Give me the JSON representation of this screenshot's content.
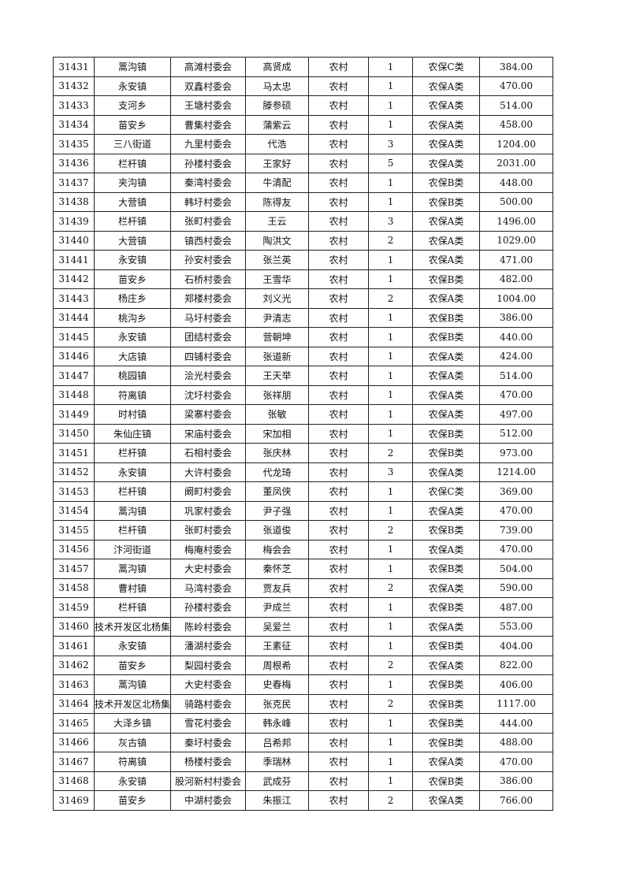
{
  "table": {
    "rows": [
      [
        "31431",
        "蒿沟镇",
        "高滩村委会",
        "高贤成",
        "农村",
        "1",
        "农保C类",
        "384.00"
      ],
      [
        "31432",
        "永安镇",
        "双鑫村委会",
        "马太忠",
        "农村",
        "1",
        "农保A类",
        "470.00"
      ],
      [
        "31433",
        "支河乡",
        "王塘村委会",
        "滕参硕",
        "农村",
        "1",
        "农保A类",
        "514.00"
      ],
      [
        "31434",
        "苗安乡",
        "曹集村委会",
        "蒲紫云",
        "农村",
        "1",
        "农保A类",
        "458.00"
      ],
      [
        "31435",
        "三八街道",
        "九里村委会",
        "代浩",
        "农村",
        "3",
        "农保A类",
        "1204.00"
      ],
      [
        "31436",
        "栏杆镇",
        "孙楼村委会",
        "王家好",
        "农村",
        "5",
        "农保A类",
        "2031.00"
      ],
      [
        "31437",
        "夹沟镇",
        "秦湾村委会",
        "牛清配",
        "农村",
        "1",
        "农保B类",
        "448.00"
      ],
      [
        "31438",
        "大营镇",
        "韩圩村委会",
        "陈得友",
        "农村",
        "1",
        "农保B类",
        "500.00"
      ],
      [
        "31439",
        "栏杆镇",
        "张町村委会",
        "王云",
        "农村",
        "3",
        "农保A类",
        "1496.00"
      ],
      [
        "31440",
        "大营镇",
        "镇西村委会",
        "陶洪文",
        "农村",
        "2",
        "农保A类",
        "1029.00"
      ],
      [
        "31441",
        "永安镇",
        "孙安村委会",
        "张兰英",
        "农村",
        "1",
        "农保A类",
        "471.00"
      ],
      [
        "31442",
        "苗安乡",
        "石桥村委会",
        "王雪华",
        "农村",
        "1",
        "农保B类",
        "482.00"
      ],
      [
        "31443",
        "杨庄乡",
        "郑楼村委会",
        "刘义光",
        "农村",
        "2",
        "农保A类",
        "1004.00"
      ],
      [
        "31444",
        "桃沟乡",
        "马圩村委会",
        "尹清志",
        "农村",
        "1",
        "农保B类",
        "386.00"
      ],
      [
        "31445",
        "永安镇",
        "团结村委会",
        "营朝坤",
        "农村",
        "1",
        "农保B类",
        "440.00"
      ],
      [
        "31446",
        "大店镇",
        "四铺村委会",
        "张道新",
        "农村",
        "1",
        "农保A类",
        "424.00"
      ],
      [
        "31447",
        "桃园镇",
        "浍光村委会",
        "王天举",
        "农村",
        "1",
        "农保A类",
        "514.00"
      ],
      [
        "31448",
        "符离镇",
        "沈圩村委会",
        "张祥朋",
        "农村",
        "1",
        "农保A类",
        "470.00"
      ],
      [
        "31449",
        "时村镇",
        "梁寨村委会",
        "张敏",
        "农村",
        "1",
        "农保A类",
        "497.00"
      ],
      [
        "31450",
        "朱仙庄镇",
        "宋庙村委会",
        "宋加相",
        "农村",
        "1",
        "农保B类",
        "512.00"
      ],
      [
        "31451",
        "栏杆镇",
        "石相村委会",
        "张庆林",
        "农村",
        "2",
        "农保B类",
        "973.00"
      ],
      [
        "31452",
        "永安镇",
        "大许村委会",
        "代龙琦",
        "农村",
        "3",
        "农保A类",
        "1214.00"
      ],
      [
        "31453",
        "栏杆镇",
        "阚町村委会",
        "董凤侠",
        "农村",
        "1",
        "农保C类",
        "369.00"
      ],
      [
        "31454",
        "蒿沟镇",
        "巩家村委会",
        "尹子强",
        "农村",
        "1",
        "农保A类",
        "470.00"
      ],
      [
        "31455",
        "栏杆镇",
        "张町村委会",
        "张道俊",
        "农村",
        "2",
        "农保B类",
        "739.00"
      ],
      [
        "31456",
        "汴河街道",
        "梅庵村委会",
        "梅会会",
        "农村",
        "1",
        "农保A类",
        "470.00"
      ],
      [
        "31457",
        "蒿沟镇",
        "大史村委会",
        "秦怀芝",
        "农村",
        "1",
        "农保B类",
        "504.00"
      ],
      [
        "31458",
        "曹村镇",
        "马湾村委会",
        "贾友兵",
        "农村",
        "2",
        "农保A类",
        "590.00"
      ],
      [
        "31459",
        "栏杆镇",
        "孙楼村委会",
        "尹成兰",
        "农村",
        "1",
        "农保B类",
        "487.00"
      ],
      [
        "31460",
        "技术开发区北杨集",
        "陈岭村委会",
        "吴爱兰",
        "农村",
        "1",
        "农保A类",
        "553.00"
      ],
      [
        "31461",
        "永安镇",
        "潘湖村委会",
        "王素征",
        "农村",
        "1",
        "农保B类",
        "404.00"
      ],
      [
        "31462",
        "苗安乡",
        "梨园村委会",
        "周根希",
        "农村",
        "2",
        "农保A类",
        "822.00"
      ],
      [
        "31463",
        "蒿沟镇",
        "大史村委会",
        "史春梅",
        "农村",
        "1",
        "农保B类",
        "406.00"
      ],
      [
        "31464",
        "技术开发区北杨集",
        "骑路村委会",
        "张克民",
        "农村",
        "2",
        "农保B类",
        "1117.00"
      ],
      [
        "31465",
        "大泽乡镇",
        "雪花村委会",
        "韩永峰",
        "农村",
        "1",
        "农保B类",
        "444.00"
      ],
      [
        "31466",
        "灰古镇",
        "秦圩村委会",
        "吕希邦",
        "农村",
        "1",
        "农保B类",
        "488.00"
      ],
      [
        "31467",
        "符离镇",
        "杨楼村委会",
        "季瑞林",
        "农村",
        "1",
        "农保A类",
        "470.00"
      ],
      [
        "31468",
        "永安镇",
        "股河新村村委会",
        "武成芬",
        "农村",
        "1",
        "农保B类",
        "386.00"
      ],
      [
        "31469",
        "苗安乡",
        "中湖村委会",
        "朱振江",
        "农村",
        "2",
        "农保A类",
        "766.00"
      ]
    ]
  }
}
